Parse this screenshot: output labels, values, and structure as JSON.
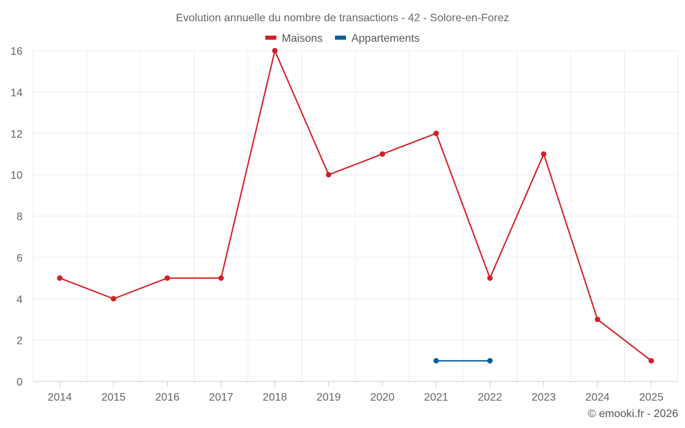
{
  "chart_data": {
    "type": "line",
    "title": "Evolution annuelle du nombre de transactions - 42 - Solore-en-Forez",
    "categories": [
      "2014",
      "2015",
      "2016",
      "2017",
      "2018",
      "2019",
      "2020",
      "2021",
      "2022",
      "2023",
      "2024",
      "2025"
    ],
    "ylim": [
      0,
      16
    ],
    "yticks": [
      0,
      2,
      4,
      6,
      8,
      10,
      12,
      14,
      16
    ],
    "grid": true,
    "legend_position": "top-center",
    "series": [
      {
        "name": "Maisons",
        "color": "#d32027",
        "values": [
          5,
          4,
          5,
          5,
          16,
          10,
          11,
          12,
          5,
          11,
          3,
          1
        ]
      },
      {
        "name": "Appartements",
        "color": "#0a5f96",
        "values": [
          null,
          null,
          null,
          null,
          null,
          null,
          null,
          1,
          1,
          null,
          null,
          null
        ]
      }
    ]
  },
  "credit": "© emooki.fr - 2026"
}
